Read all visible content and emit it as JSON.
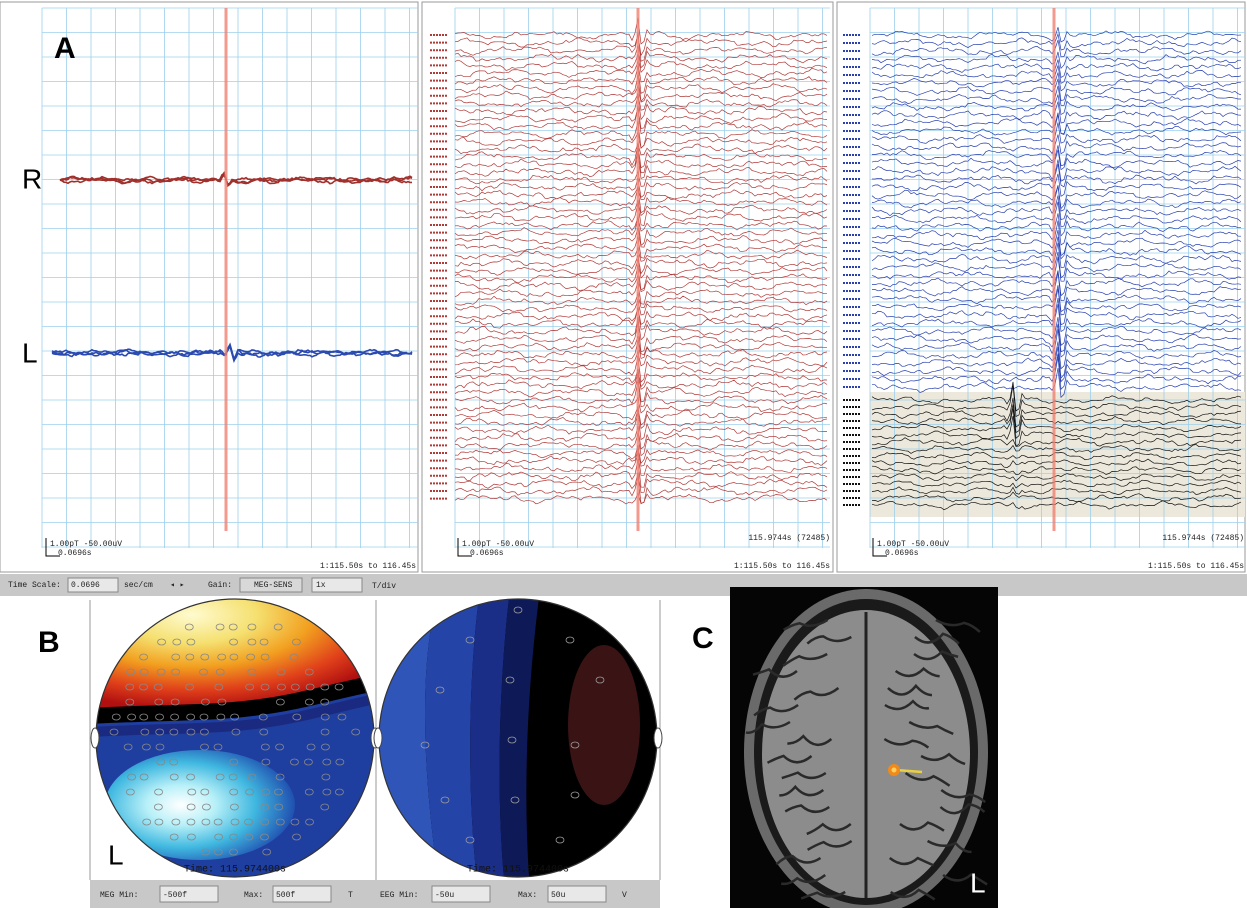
{
  "panel_labels": {
    "a": "A",
    "b": "B",
    "c": "C"
  },
  "waveforms": {
    "channel_labels": [
      "R",
      "L"
    ],
    "panels": [
      {
        "scale_gain": "1.00pT -50.00uV",
        "scale_time": "0.0696s",
        "range": "1:115.50s to 116.45s"
      },
      {
        "scale_gain": "1.00pT -50.00uV",
        "scale_time": "0.0696s",
        "cursor": "115.9744s (72485)",
        "range": "1:115.50s to 116.45s"
      },
      {
        "scale_gain": "1.00pT -50.00uV",
        "scale_time": "0.0696s",
        "cursor": "115.9744s (72485)",
        "range": "1:115.50s to 116.45s"
      }
    ]
  },
  "toolbar": {
    "time_scale_label": "Time Scale:",
    "time_scale": "0.0696",
    "time_unit": "sec/cm",
    "gain_label": "Gain:",
    "gain_mode": "MEG-SENS",
    "gain": "1x",
    "gain_unit": "T/div"
  },
  "topomaps": {
    "maps": [
      {
        "time": "Time: 115.974400s",
        "side": "L"
      },
      {
        "time": "Time: 115.974400s"
      }
    ],
    "limits": {
      "meg_min_label": "MEG Min:",
      "meg_min": "-500f",
      "meg_max_label": "Max:",
      "meg_max": "500f",
      "meg_unit": "T",
      "eeg_min_label": "EEG Min:",
      "eeg_min": "-50u",
      "eeg_max_label": "Max:",
      "eeg_max": "50u",
      "eeg_unit": "V"
    }
  },
  "mri": {
    "side": "L"
  }
}
